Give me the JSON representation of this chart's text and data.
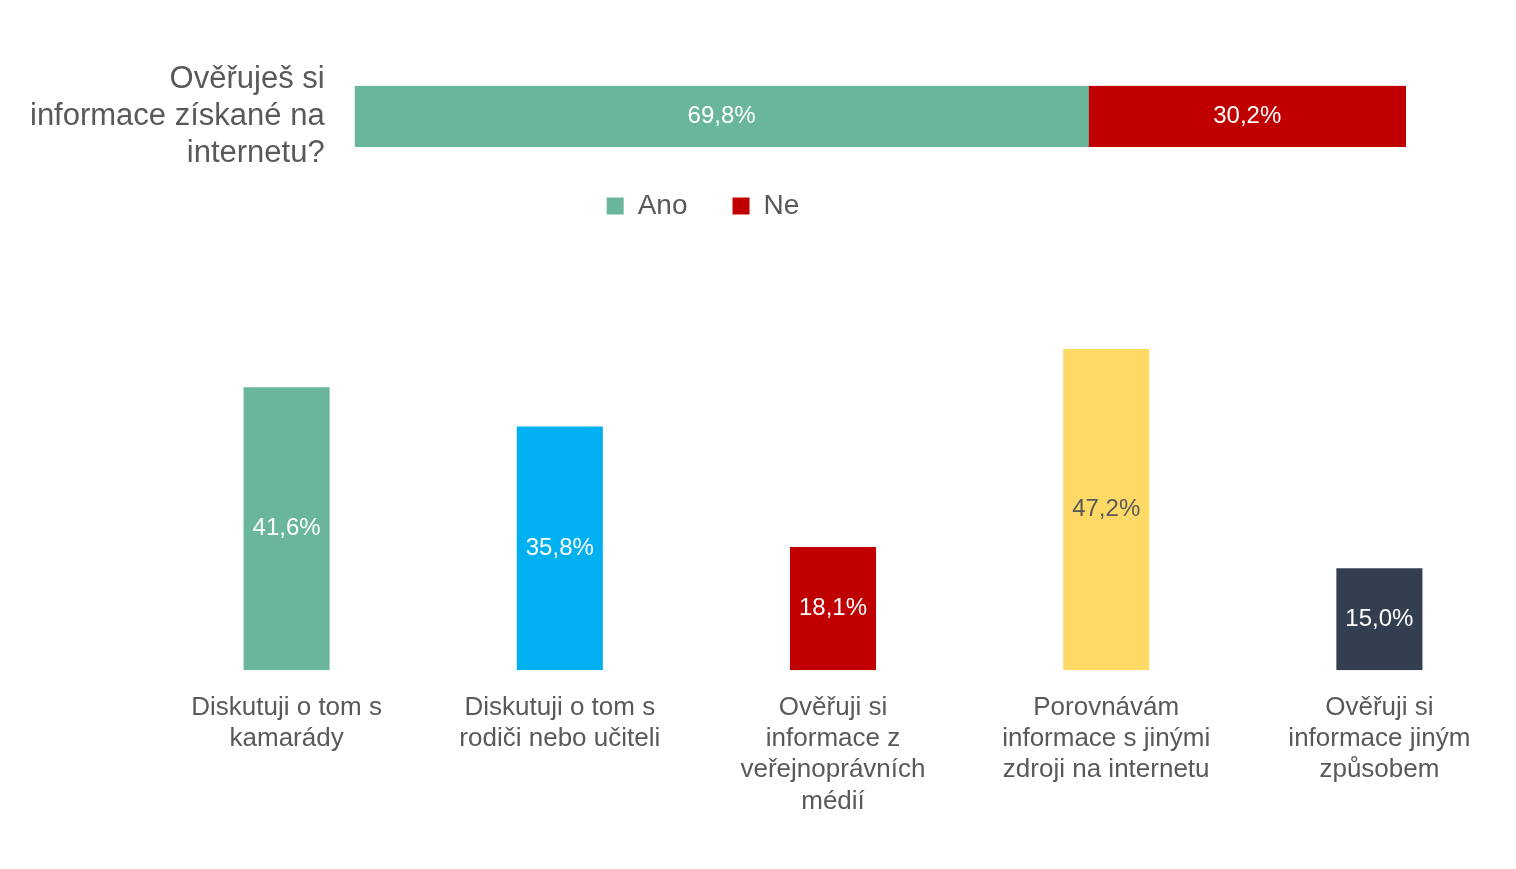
{
  "chart_data": [
    {
      "type": "bar",
      "orientation": "horizontal",
      "stacked": true,
      "categories": [
        "Ověřuješ si informace získané na internetu?"
      ],
      "xlim": [
        0,
        100
      ],
      "tick_labels": "y",
      "legend": "bottom",
      "series": [
        {
          "name": "Ano",
          "color": "#69b69a",
          "values": [
            69.8
          ],
          "value_labels": [
            "69,8%"
          ]
        },
        {
          "name": "Ne",
          "color": "#c00000",
          "values": [
            30.2
          ],
          "value_labels": [
            "30,2%"
          ]
        }
      ]
    },
    {
      "type": "bar",
      "categories": [
        "Diskutuji o tom s kamarády",
        "Diskutuji o tom s rodiči nebo učiteli",
        "Ověřuji si informace z veřejnoprávních médií",
        "Porovnávám informace s jinými zdroji na internetu",
        "Ověřuji si informace jiným způsobem"
      ],
      "values": [
        41.6,
        35.8,
        18.1,
        47.2,
        15.0
      ],
      "colors": [
        "#69b69a",
        "#00b0f0",
        "#c00000",
        "#ffd966",
        "#333f50"
      ],
      "value_labels": [
        "41,6%",
        "35,8%",
        "18,1%",
        "47,2%",
        "15,0%"
      ],
      "tick_labels": "x"
    }
  ]
}
